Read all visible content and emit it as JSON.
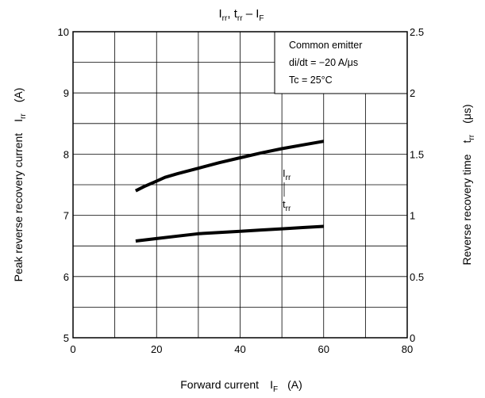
{
  "chart_data": {
    "type": "line",
    "title": {
      "main": "I",
      "main_sub": "rr",
      "sep": ", ",
      "second": "t",
      "second_sub": "rr",
      "dash": " – ",
      "third": "I",
      "third_sub": "F"
    },
    "xlabel": {
      "text": "Forward current",
      "var": "I",
      "var_sub": "F",
      "unit": "(A)"
    },
    "ylabel_left": {
      "text": "Peak reverse recovery current",
      "var": "I",
      "var_sub": "rr",
      "unit": "(A)"
    },
    "ylabel_right": {
      "text": "Reverse recovery time",
      "var": "t",
      "var_sub": "rr",
      "unit": "(μs)"
    },
    "xlim": [
      0,
      80
    ],
    "ylim_left": [
      5,
      10
    ],
    "ylim_right": [
      0,
      2.5
    ],
    "x_ticks": [
      "0",
      "20",
      "40",
      "60",
      "80"
    ],
    "y_left_ticks": [
      "5",
      "6",
      "7",
      "8",
      "9",
      "10"
    ],
    "y_right_ticks": [
      "0",
      "0.5",
      "1",
      "1.5",
      "2",
      "2.5"
    ],
    "grid": true,
    "annotation_box": {
      "lines": [
        "Common emitter",
        "di/dt = −20 A/μs",
        "Tc = 25°C"
      ],
      "placement": "top-right"
    },
    "series": [
      {
        "name": "Irr",
        "label_main": "I",
        "label_sub": "rr",
        "axis": "left",
        "x": [
          15,
          17,
          20,
          22,
          25,
          30,
          35,
          40,
          45,
          50,
          55,
          60
        ],
        "values": [
          7.4,
          7.47,
          7.56,
          7.62,
          7.68,
          7.77,
          7.86,
          7.94,
          8.02,
          8.09,
          8.15,
          8.21
        ]
      },
      {
        "name": "trr",
        "label_main": "t",
        "label_sub": "rr",
        "axis": "right",
        "x": [
          15,
          20,
          25,
          30,
          35,
          40,
          45,
          50,
          55,
          60
        ],
        "values": [
          0.79,
          0.81,
          0.83,
          0.85,
          0.86,
          0.87,
          0.88,
          0.89,
          0.9,
          0.91
        ]
      }
    ]
  }
}
